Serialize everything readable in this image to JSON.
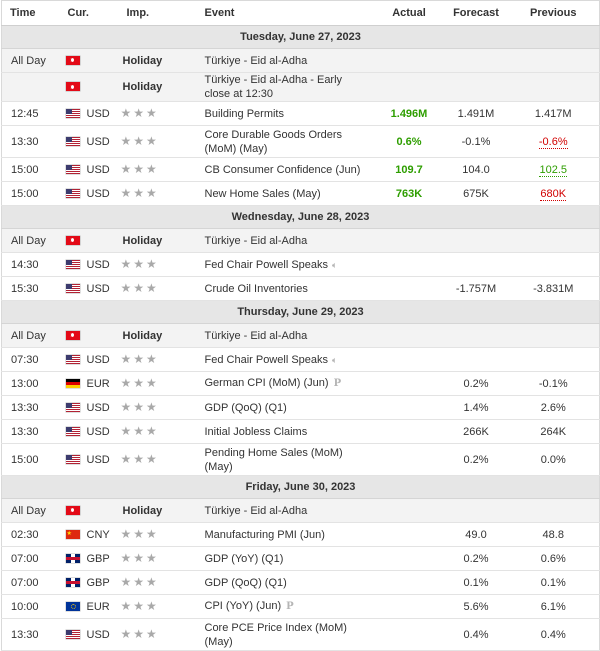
{
  "colors": {
    "positive": "#2e9e00",
    "negative": "#d10000",
    "day_header_bg": "#e6e6e6",
    "holiday_row_bg": "#f3f3f3"
  },
  "headers": {
    "time": "Time",
    "currency": "Cur.",
    "importance": "Imp.",
    "event": "Event",
    "actual": "Actual",
    "forecast": "Forecast",
    "previous": "Previous"
  },
  "days": [
    {
      "date": "Tuesday, June 27, 2023",
      "rows": [
        {
          "time": "All Day",
          "flag": "tr",
          "currency": "",
          "holiday": "Holiday",
          "event": "Türkiye - Eid al-Adha",
          "actual": "",
          "forecast": "",
          "previous": ""
        },
        {
          "time": "",
          "flag": "tr",
          "currency": "",
          "holiday": "Holiday",
          "event": "Türkiye - Eid al-Adha - Early close at 12:30",
          "actual": "",
          "forecast": "",
          "previous": ""
        },
        {
          "time": "12:45",
          "flag": "us",
          "currency": "USD",
          "event": "Building Permits",
          "actual": "1.496M",
          "actual_status": "up",
          "forecast": "1.491M",
          "previous": "1.417M"
        },
        {
          "time": "13:30",
          "flag": "us",
          "currency": "USD",
          "event": "Core Durable Goods Orders (MoM) (May)",
          "tall": true,
          "actual": "0.6%",
          "actual_status": "up",
          "forecast": "-0.1%",
          "previous": "-0.6%",
          "previous_status": "rev-down"
        },
        {
          "time": "15:00",
          "flag": "us",
          "currency": "USD",
          "event": "CB Consumer Confidence (Jun)",
          "actual": "109.7",
          "actual_status": "up",
          "forecast": "104.0",
          "previous": "102.5",
          "previous_status": "rev-up"
        },
        {
          "time": "15:00",
          "flag": "us",
          "currency": "USD",
          "event": "New Home Sales (May)",
          "actual": "763K",
          "actual_status": "up",
          "forecast": "675K",
          "previous": "680K",
          "previous_status": "rev-down"
        }
      ]
    },
    {
      "date": "Wednesday, June 28, 2023",
      "rows": [
        {
          "time": "All Day",
          "flag": "tr",
          "currency": "",
          "holiday": "Holiday",
          "event": "Türkiye - Eid al-Adha",
          "actual": "",
          "forecast": "",
          "previous": ""
        },
        {
          "time": "14:30",
          "flag": "us",
          "currency": "USD",
          "event": "Fed Chair Powell Speaks",
          "icon": "speaker",
          "actual": "",
          "forecast": "",
          "previous": ""
        },
        {
          "time": "15:30",
          "flag": "us",
          "currency": "USD",
          "event": "Crude Oil Inventories",
          "actual": "",
          "forecast": "-1.757M",
          "previous": "-3.831M"
        }
      ]
    },
    {
      "date": "Thursday, June 29, 2023",
      "rows": [
        {
          "time": "All Day",
          "flag": "tr",
          "currency": "",
          "holiday": "Holiday",
          "event": "Türkiye - Eid al-Adha",
          "actual": "",
          "forecast": "",
          "previous": ""
        },
        {
          "time": "07:30",
          "flag": "us",
          "currency": "USD",
          "event": "Fed Chair Powell Speaks",
          "icon": "speaker",
          "actual": "",
          "forecast": "",
          "previous": ""
        },
        {
          "time": "13:00",
          "flag": "de",
          "currency": "EUR",
          "event": "German CPI (MoM) (Jun)",
          "icon": "preliminary",
          "actual": "",
          "forecast": "0.2%",
          "previous": "-0.1%"
        },
        {
          "time": "13:30",
          "flag": "us",
          "currency": "USD",
          "event": "GDP (QoQ) (Q1)",
          "actual": "",
          "forecast": "1.4%",
          "previous": "2.6%"
        },
        {
          "time": "13:30",
          "flag": "us",
          "currency": "USD",
          "event": "Initial Jobless Claims",
          "actual": "",
          "forecast": "266K",
          "previous": "264K"
        },
        {
          "time": "15:00",
          "flag": "us",
          "currency": "USD",
          "event": "Pending Home Sales (MoM) (May)",
          "tall": true,
          "actual": "",
          "forecast": "0.2%",
          "previous": "0.0%"
        }
      ]
    },
    {
      "date": "Friday, June 30, 2023",
      "rows": [
        {
          "time": "All Day",
          "flag": "tr",
          "currency": "",
          "holiday": "Holiday",
          "event": "Türkiye - Eid al-Adha",
          "actual": "",
          "forecast": "",
          "previous": ""
        },
        {
          "time": "02:30",
          "flag": "cn",
          "currency": "CNY",
          "event": "Manufacturing PMI (Jun)",
          "actual": "",
          "forecast": "49.0",
          "previous": "48.8"
        },
        {
          "time": "07:00",
          "flag": "gb",
          "currency": "GBP",
          "event": "GDP (YoY) (Q1)",
          "actual": "",
          "forecast": "0.2%",
          "previous": "0.6%"
        },
        {
          "time": "07:00",
          "flag": "gb",
          "currency": "GBP",
          "event": "GDP (QoQ) (Q1)",
          "actual": "",
          "forecast": "0.1%",
          "previous": "0.1%"
        },
        {
          "time": "10:00",
          "flag": "eu",
          "currency": "EUR",
          "event": "CPI (YoY) (Jun)",
          "icon": "preliminary",
          "actual": "",
          "forecast": "5.6%",
          "previous": "6.1%"
        },
        {
          "time": "13:30",
          "flag": "us",
          "currency": "USD",
          "event": "Core PCE Price Index (MoM) (May)",
          "tall": true,
          "actual": "",
          "forecast": "0.4%",
          "previous": "0.4%"
        }
      ]
    }
  ]
}
